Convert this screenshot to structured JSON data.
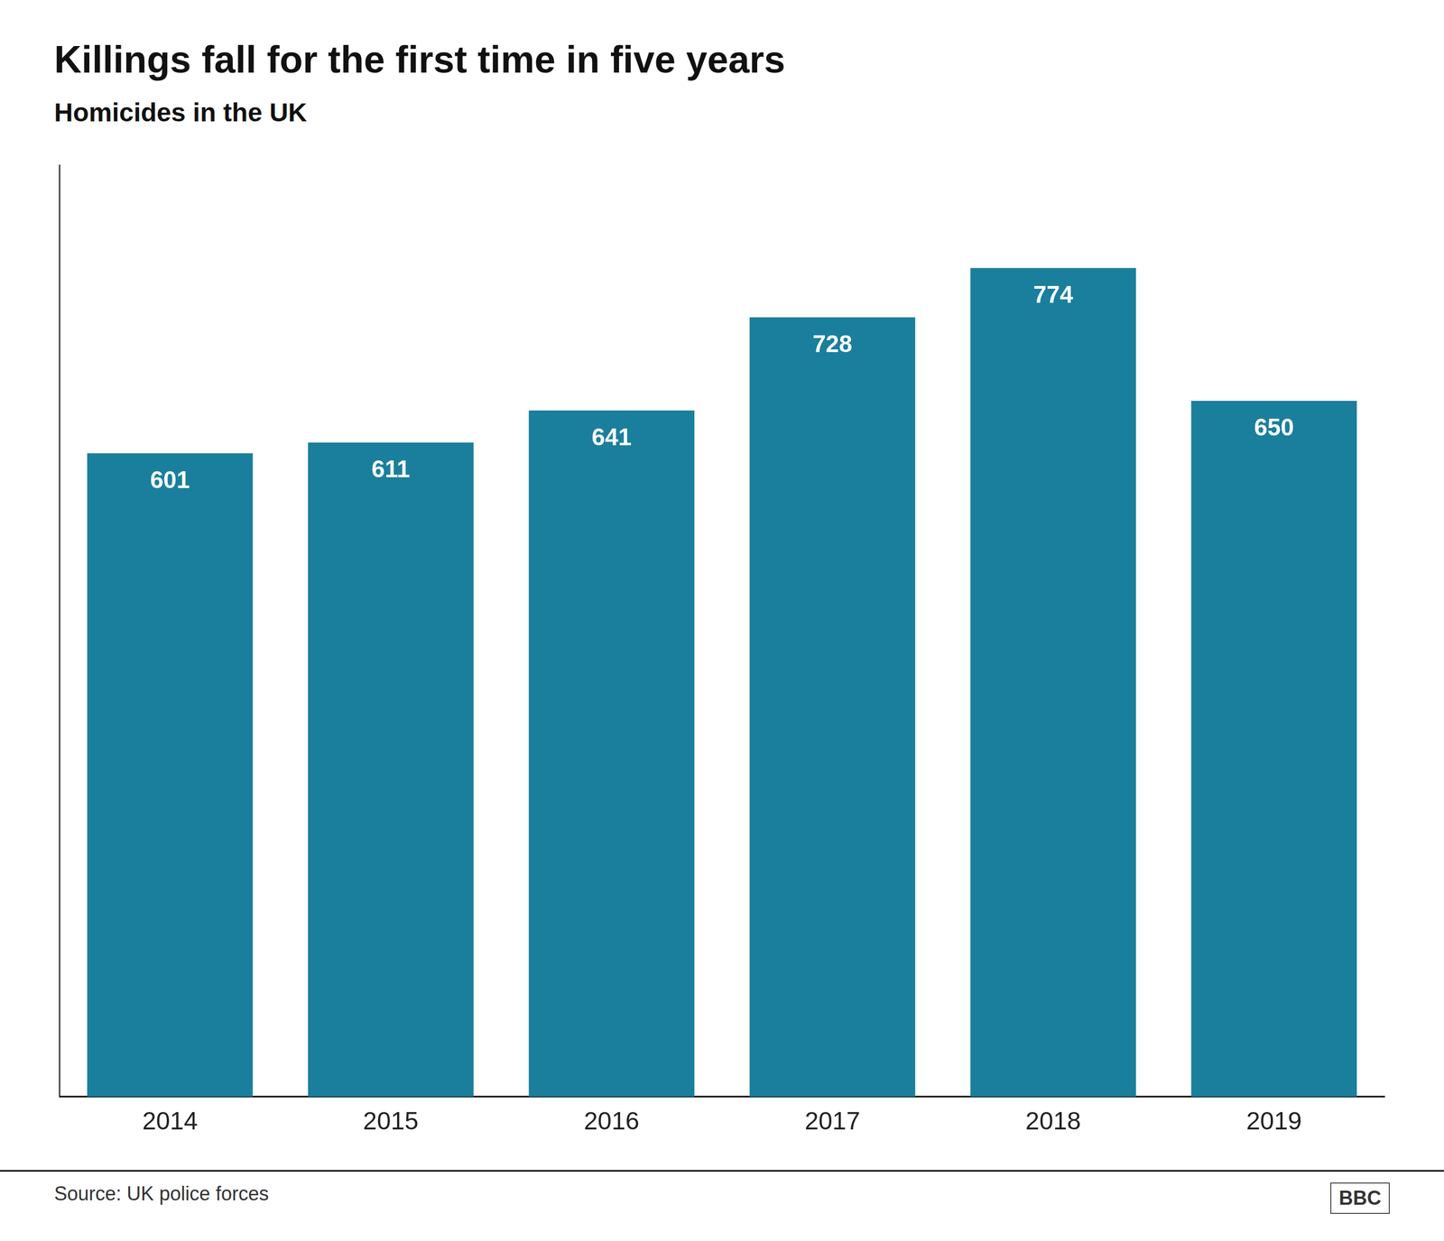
{
  "chart_data": {
    "type": "bar",
    "title": "Killings fall for the first time in five years",
    "subtitle": "Homicides in the UK",
    "categories": [
      "2014",
      "2015",
      "2016",
      "2017",
      "2018",
      "2019"
    ],
    "values": [
      601,
      611,
      641,
      728,
      774,
      650
    ],
    "color": "#1a7f9c",
    "ylim": [
      0,
      870
    ],
    "data_labels": true,
    "tick_labels": "x",
    "grid": false,
    "annotations": [
      "Source: UK police forces",
      "BBC"
    ]
  }
}
